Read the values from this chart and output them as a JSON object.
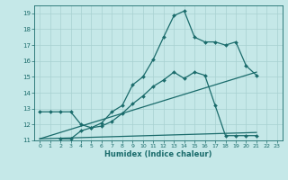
{
  "title": "",
  "xlabel": "Humidex (Indice chaleur)",
  "bg_color": "#c5e8e8",
  "grid_color": "#a8d0d0",
  "line_color": "#1a6b6b",
  "xlim": [
    -0.5,
    23.5
  ],
  "ylim": [
    11,
    19.5
  ],
  "yticks": [
    11,
    12,
    13,
    14,
    15,
    16,
    17,
    18,
    19
  ],
  "xticks": [
    0,
    1,
    2,
    3,
    4,
    5,
    6,
    7,
    8,
    9,
    10,
    11,
    12,
    13,
    14,
    15,
    16,
    17,
    18,
    19,
    20,
    21,
    22,
    23
  ],
  "curve1_x": [
    0,
    1,
    2,
    3,
    4,
    5,
    6,
    7,
    8,
    9,
    10,
    11,
    12,
    13,
    14,
    15,
    16,
    17,
    18,
    19,
    20,
    21
  ],
  "curve1_y": [
    12.8,
    12.8,
    12.8,
    12.8,
    12.0,
    11.8,
    12.1,
    12.8,
    13.2,
    14.5,
    15.0,
    16.1,
    17.5,
    18.85,
    19.15,
    17.5,
    17.2,
    17.2,
    17.0,
    17.2,
    15.7,
    15.1
  ],
  "curve2_x": [
    2,
    3,
    4,
    5,
    6,
    7,
    8,
    9,
    10,
    11,
    12,
    13,
    14,
    15,
    16,
    17,
    18,
    19,
    20,
    21
  ],
  "curve2_y": [
    11.1,
    11.1,
    11.6,
    11.8,
    11.9,
    12.2,
    12.7,
    13.3,
    13.8,
    14.4,
    14.8,
    15.3,
    14.9,
    15.3,
    15.1,
    13.2,
    11.3,
    11.3,
    11.3,
    11.3
  ],
  "curve3_x": [
    0,
    21
  ],
  "curve3_y": [
    11.1,
    15.3
  ],
  "curve4_x": [
    0,
    21
  ],
  "curve4_y": [
    11.1,
    11.5
  ]
}
